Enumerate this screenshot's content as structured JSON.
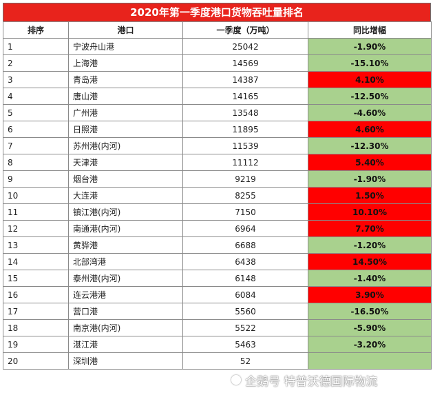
{
  "title": "2020年第一季度港口货物吞吐量排名",
  "headers": {
    "rank": "排序",
    "port": "港口",
    "q1": "一季度（万吨）",
    "yoy": "同比增幅"
  },
  "rows": [
    {
      "rank": "1",
      "port": "宁波舟山港",
      "q1": "25042",
      "yoy": "-1.90%",
      "trend": "down"
    },
    {
      "rank": "2",
      "port": "上海港",
      "q1": "14569",
      "yoy": "-15.10%",
      "trend": "down"
    },
    {
      "rank": "3",
      "port": "青岛港",
      "q1": "14387",
      "yoy": "4.10%",
      "trend": "up"
    },
    {
      "rank": "4",
      "port": "唐山港",
      "q1": "14165",
      "yoy": "-12.50%",
      "trend": "down"
    },
    {
      "rank": "5",
      "port": "广州港",
      "q1": "13548",
      "yoy": "-4.60%",
      "trend": "down"
    },
    {
      "rank": "6",
      "port": "日照港",
      "q1": "11895",
      "yoy": "4.60%",
      "trend": "up"
    },
    {
      "rank": "7",
      "port": "苏州港(内河)",
      "q1": "11539",
      "yoy": "-12.30%",
      "trend": "down"
    },
    {
      "rank": "8",
      "port": "天津港",
      "q1": "11112",
      "yoy": "5.40%",
      "trend": "up"
    },
    {
      "rank": "9",
      "port": "烟台港",
      "q1": "9219",
      "yoy": "-1.90%",
      "trend": "down"
    },
    {
      "rank": "10",
      "port": "大连港",
      "q1": "8255",
      "yoy": "1.50%",
      "trend": "up"
    },
    {
      "rank": "11",
      "port": "镇江港(内河)",
      "q1": "7150",
      "yoy": "10.10%",
      "trend": "up"
    },
    {
      "rank": "12",
      "port": "南通港(内河)",
      "q1": "6964",
      "yoy": "7.70%",
      "trend": "up"
    },
    {
      "rank": "13",
      "port": "黄骅港",
      "q1": "6688",
      "yoy": "-1.20%",
      "trend": "down"
    },
    {
      "rank": "14",
      "port": "北部湾港",
      "q1": "6438",
      "yoy": "14.50%",
      "trend": "up"
    },
    {
      "rank": "15",
      "port": "泰州港(内河)",
      "q1": "6148",
      "yoy": "-1.40%",
      "trend": "down"
    },
    {
      "rank": "16",
      "port": "连云港港",
      "q1": "6084",
      "yoy": "3.90%",
      "trend": "up"
    },
    {
      "rank": "17",
      "port": "营口港",
      "q1": "5560",
      "yoy": "-16.50%",
      "trend": "down"
    },
    {
      "rank": "18",
      "port": "南京港(内河)",
      "q1": "5522",
      "yoy": "-5.90%",
      "trend": "down"
    },
    {
      "rank": "19",
      "port": "湛江港",
      "q1": "5463",
      "yoy": "-3.20%",
      "trend": "down"
    },
    {
      "rank": "20",
      "port": "深圳港",
      "q1": "52",
      "yoy": "",
      "trend": "down"
    }
  ],
  "colors": {
    "header_bg": "#e8231c",
    "increase": "#ff0000",
    "decrease": "#a9d18e"
  },
  "watermark": {
    "text": "企鹅号 特普沃德国际物流",
    "icon": "penguin-logo-icon"
  }
}
